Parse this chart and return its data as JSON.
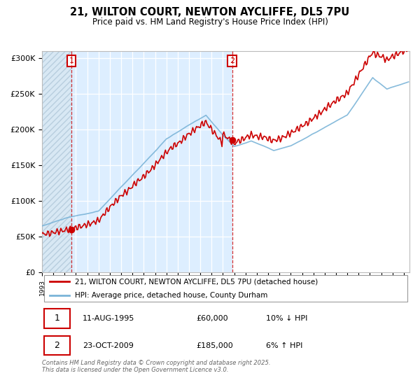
{
  "title_line1": "21, WILTON COURT, NEWTON AYCLIFFE, DL5 7PU",
  "title_line2": "Price paid vs. HM Land Registry's House Price Index (HPI)",
  "ylabel_ticks": [
    "£0",
    "£50K",
    "£100K",
    "£150K",
    "£200K",
    "£250K",
    "£300K"
  ],
  "ytick_values": [
    0,
    50000,
    100000,
    150000,
    200000,
    250000,
    300000
  ],
  "ylim": [
    0,
    310000
  ],
  "xlim_start": 1993.0,
  "xlim_end": 2025.5,
  "hpi_color": "#7ab4d8",
  "price_color": "#cc0000",
  "sale1_date": 1995.61,
  "sale1_price": 60000,
  "sale1_label": "1",
  "sale2_date": 2009.81,
  "sale2_price": 185000,
  "sale2_label": "2",
  "bg_hatch_color": "#d8e8f4",
  "bg_mid_color": "#ddeeff",
  "bg_right_color": "#ffffff",
  "legend_line1": "21, WILTON COURT, NEWTON AYCLIFFE, DL5 7PU (detached house)",
  "legend_line2": "HPI: Average price, detached house, County Durham",
  "table_row1": [
    "1",
    "11-AUG-1995",
    "£60,000",
    "10% ↓ HPI"
  ],
  "table_row2": [
    "2",
    "23-OCT-2009",
    "£185,000",
    "6% ↑ HPI"
  ],
  "footer": "Contains HM Land Registry data © Crown copyright and database right 2025.\nThis data is licensed under the Open Government Licence v3.0."
}
